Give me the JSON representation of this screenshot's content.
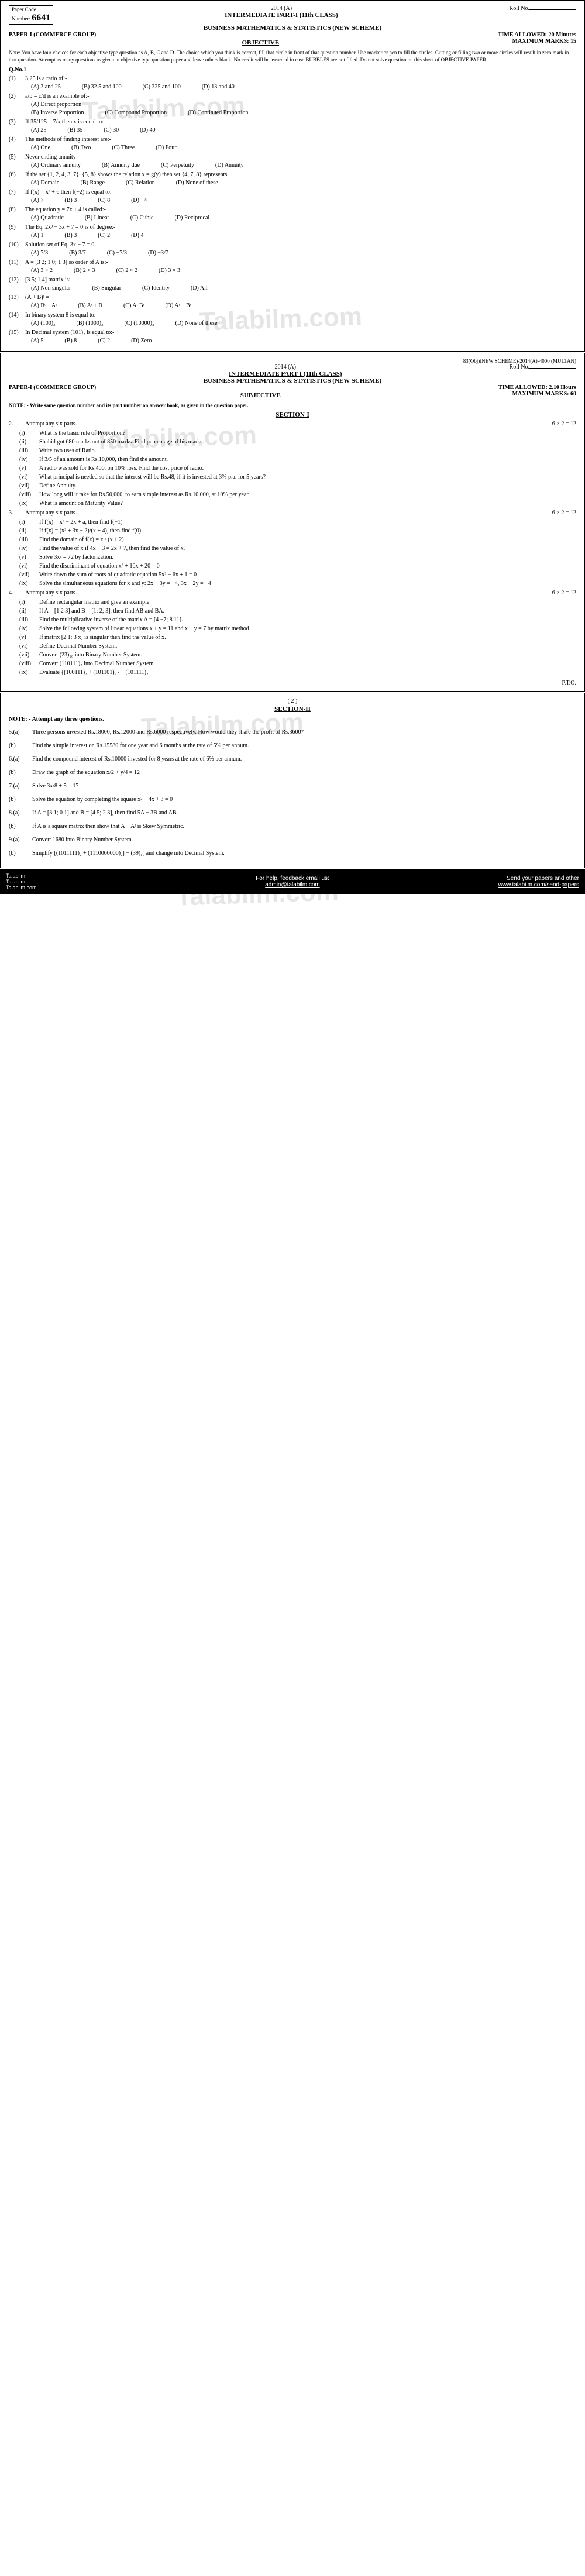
{
  "paper_code_label": "Paper Code",
  "paper_code_number_label": "Number:",
  "paper_code_number": "6641",
  "year": "2014 (A)",
  "roll_label": "Roll No.",
  "class_line": "INTERMEDIATE PART-I (11th CLASS)",
  "subject": "BUSINESS MATHEMATICS & STATISTICS (NEW SCHEME)",
  "paper_group": "PAPER-I   (COMMERCE GROUP)",
  "time_obj": "TIME ALLOWED: 20 Minutes",
  "marks_obj": "MAXIMUM MARKS: 15",
  "objective_head": "OBJECTIVE",
  "note_obj": "Note: You have four choices for each objective type question as A, B, C and D. The choice which you think is correct, fill that circle in front of that question number. Use marker or pen to fill the circles. Cutting or filling two or more circles will result in zero mark in that question. Attempt as many questions as given in objective type question paper and leave others blank. No credit will be awarded in case BUBBLES are not filled. Do not solve question on this sheet of OBJECTIVE PAPER.",
  "qno1": "Q.No.1",
  "mcq": [
    {
      "n": "(1)",
      "t": "3.25 is a ratio of:-",
      "o": [
        "(A) 3 and 25",
        "(B) 32.5 and 100",
        "(C) 325 and 100",
        "(D) 13 and 40"
      ]
    },
    {
      "n": "(2)",
      "t": "a/b = c/d is an example of:-",
      "o": [
        "(A) Direct proportion",
        "",
        "",
        ""
      ],
      "o2": [
        "(B) Inverse Proportion",
        "(C) Compound Proportion",
        "(D) Continued Proportion"
      ]
    },
    {
      "n": "(3)",
      "t": "If 35/125 = 7/x then x is equal to:-",
      "o": [
        "(A) 25",
        "(B) 35",
        "(C) 30",
        "(D) 40"
      ]
    },
    {
      "n": "(4)",
      "t": "The methods of finding interest are:-",
      "o": [
        "(A) One",
        "(B) Two",
        "(C) Three",
        "(D) Four"
      ]
    },
    {
      "n": "(5)",
      "t": "Never ending annuity",
      "o": [
        "(A) Ordinary annuity",
        "(B) Annuity due",
        "(C) Perpetuity",
        "(D) Annuity"
      ]
    },
    {
      "n": "(6)",
      "t": "If the set {1, 2, 4, 3, 7}, {5, 8} shows the relation x = g(y) then set {4, 7, 8} represents,",
      "o": [
        "(A) Domain",
        "(B) Range",
        "(C) Relation",
        "(D) None of these"
      ]
    },
    {
      "n": "(7)",
      "t": "If f(x) = x² + 6 then f(−2) is equal to:-",
      "o": [
        "(A) 7",
        "(B) 3",
        "(C) 8",
        "(D) −4"
      ]
    },
    {
      "n": "(8)",
      "t": "The equation y = 7x + 4 is called:-",
      "o": [
        "(A) Quadratic",
        "(B) Linear",
        "(C) Cubic",
        "(D) Reciprocal"
      ]
    },
    {
      "n": "(9)",
      "t": "The Eq. 2x³ − 3x + 7 = 0 is of degree:-",
      "o": [
        "(A) 1",
        "(B) 3",
        "(C) 2",
        "(D) 4"
      ]
    },
    {
      "n": "(10)",
      "t": "Solution set of Eq. 3x − 7 = 0",
      "o": [
        "(A) 7/3",
        "(B) 3/7",
        "(C) −7/3",
        "(D) −3/7"
      ]
    },
    {
      "n": "(11)",
      "t": "A = [3 2; 1 0; 1 3] so order of A is:-",
      "o": [
        "(A) 3 × 2",
        "(B) 2 × 3",
        "(C) 2 × 2",
        "(D) 3 × 3"
      ]
    },
    {
      "n": "(12)",
      "t": "[3 5; 1 4] matrix is:-",
      "o": [
        "(A) Non singular",
        "(B) Singular",
        "(C) Identity",
        "(D) All"
      ]
    },
    {
      "n": "(13)",
      "t": "(A + B)ᵗ =",
      "o": [
        "(A) Bᵗ − Aᵗ",
        "(B) Aᵗ + B",
        "(C) Aᵗ Bᵗ",
        "(D) Aᵗ − Bᵗ"
      ]
    },
    {
      "n": "(14)",
      "t": "In binary system 8 is equal to:-",
      "o": [
        "(A) (100)₂",
        "(B) (1000)₂",
        "(C) (10000)₂",
        "(D) None of these"
      ]
    },
    {
      "n": "(15)",
      "t": "In Decimal system (101)₂ is equal to:-",
      "o": [
        "(A) 5",
        "(B) 8",
        "(C) 2",
        "(D) Zero"
      ]
    }
  ],
  "sep_code": "83(Obj)(NEW SCHEME)-2014(A)-4000 (MULTAN)",
  "time_subj": "TIME ALLOWED: 2.10 Hours",
  "marks_subj": "MAXIMUM MARKS: 60",
  "subjective_head": "SUBJECTIVE",
  "note_subj": "NOTE: - Write same question number and its part number on answer book, as given in the question paper.",
  "section1_head": "SECTION-I",
  "q2_head": "Attempt any six parts.",
  "q2_marks": "6 × 2 = 12",
  "q2": [
    {
      "n": "(i)",
      "t": "What is the basic rule of Proportion?"
    },
    {
      "n": "(ii)",
      "t": "Shahid got 680 marks out of 850 marks. Find percentage of his marks."
    },
    {
      "n": "(iii)",
      "t": "Write two uses of Ratio."
    },
    {
      "n": "(iv)",
      "t": "If 3/5 of an amount is Rs.10,000, then find the amount."
    },
    {
      "n": "(v)",
      "t": "A radio was sold for Rs.400, on 10% loss. Find the cost price of radio."
    },
    {
      "n": "(vi)",
      "t": "What principal is needed so that the interest will be Rs.48, if it is invested at 3% p.a. for 5 years?"
    },
    {
      "n": "(vii)",
      "t": "Define Annuity."
    },
    {
      "n": "(viii)",
      "t": "How long will it take for Rs.50,000, to earn simple interest as Rs.10,000, at 10% per year."
    },
    {
      "n": "(ix)",
      "t": "What is amount on Maturity Value?"
    }
  ],
  "q3_head": "Attempt any six parts.",
  "q3_marks": "6 × 2 = 12",
  "q3": [
    {
      "n": "(i)",
      "t": "If f(x) = x² − 2x + a, then find f(−1)"
    },
    {
      "n": "(ii)",
      "t": "If f(x) = (x² + 3x − 2)/(x + 4), then find f(0)"
    },
    {
      "n": "(iii)",
      "t": "Find the domain of f(x) = x / (x + 2)"
    },
    {
      "n": "(iv)",
      "t": "Find the value of x if 4x − 3 = 2x + 7, then find the value of x."
    },
    {
      "n": "(v)",
      "t": "Solve 3x² = 72 by factorization."
    },
    {
      "n": "(vi)",
      "t": "Find the discriminant of equation x² + 10x + 20 = 0"
    },
    {
      "n": "(vii)",
      "t": "Write down the sum of roots of quadratic equation 5x² − 6x + 1 = 0"
    },
    {
      "n": "(ix)",
      "t": "Solve the simultaneous equations for x and y:  2x − 3y = −4,   3x − 2y = −4"
    }
  ],
  "q4_head": "Attempt any six parts.",
  "q4_marks": "6 × 2 = 12",
  "q4": [
    {
      "n": "(i)",
      "t": "Define rectangular matrix and give an example."
    },
    {
      "n": "(ii)",
      "t": "If A = [1  2  3] and B = [1; 2; 3], then find AB and BA."
    },
    {
      "n": "(iii)",
      "t": "Find the multiplicative inverse of the matrix A = [4 −7; 8 11]."
    },
    {
      "n": "(iv)",
      "t": "Solve the following system of linear equations x + y = 11 and x − y = 7 by matrix method."
    },
    {
      "n": "(v)",
      "t": "If matrix [2 1; 3 x] is singular then find the value of x."
    },
    {
      "n": "(vi)",
      "t": "Define Decimal Number System."
    },
    {
      "n": "(vii)",
      "t": "Convert (23)₁₀ into Binary Number System."
    },
    {
      "n": "(viii)",
      "t": "Convert (110111)₂ into Decimal Number System."
    },
    {
      "n": "(ix)",
      "t": "Evaluate {(100111)₂ + (101101)₂} − (101111)₂"
    }
  ],
  "pto": "P.T.O.",
  "page2_num": "( 2 )",
  "section2_head": "SECTION-II",
  "note2": "NOTE: - Attempt any three questions.",
  "sec2": [
    {
      "n": "5.(a)",
      "t": "Three persons invested Rs.18000, Rs.12000 and Rs.6000 respectively. How would they share the profit of Rs.3600?"
    },
    {
      "n": "(b)",
      "t": "Find the simple interest on Rs.15580 for one year and 6 months at the rate of 5% per annum."
    },
    {
      "n": "6.(a)",
      "t": "Find the compound interest of Rs.10000 invested for 8 years at the rate of 6% per annum."
    },
    {
      "n": "(b)",
      "t": "Draw the graph of the equation  x/2 + y/4 = 12"
    },
    {
      "n": "7.(a)",
      "t": "Solve  3x/8 + 5 = 17"
    },
    {
      "n": "(b)",
      "t": "Solve the equation by completing the square   x² − 4x + 3 = 0"
    },
    {
      "n": "8.(a)",
      "t": "If A = [3 1; 0 1] and B = [4 5; 2 3], then find 5A − 3B and AB."
    },
    {
      "n": "(b)",
      "t": "If A is a square matrix then show that A − Aᵗ is Skew Symmetric."
    },
    {
      "n": "9.(a)",
      "t": "Convert 1680 into Binary Number System."
    },
    {
      "n": "(b)",
      "t": "Simplify   [(1011111)₂ + (1110000000)₂] − (39)₁₀ and change into Decimal System."
    }
  ],
  "footer_left": "Talabilm\nTalabilm\nTalabilm.com",
  "footer_mid_label": "For help, feedback email us:",
  "footer_mid_email": "admin@talabilm.com",
  "footer_right_label": "Send your papers and other",
  "footer_right_link": "www.talabilm.com/send-papers",
  "watermarks": [
    "Talabilm.com",
    "Talabilm.com",
    "Talabilm.com",
    "Talabilm.com",
    "Talabilm.com"
  ]
}
